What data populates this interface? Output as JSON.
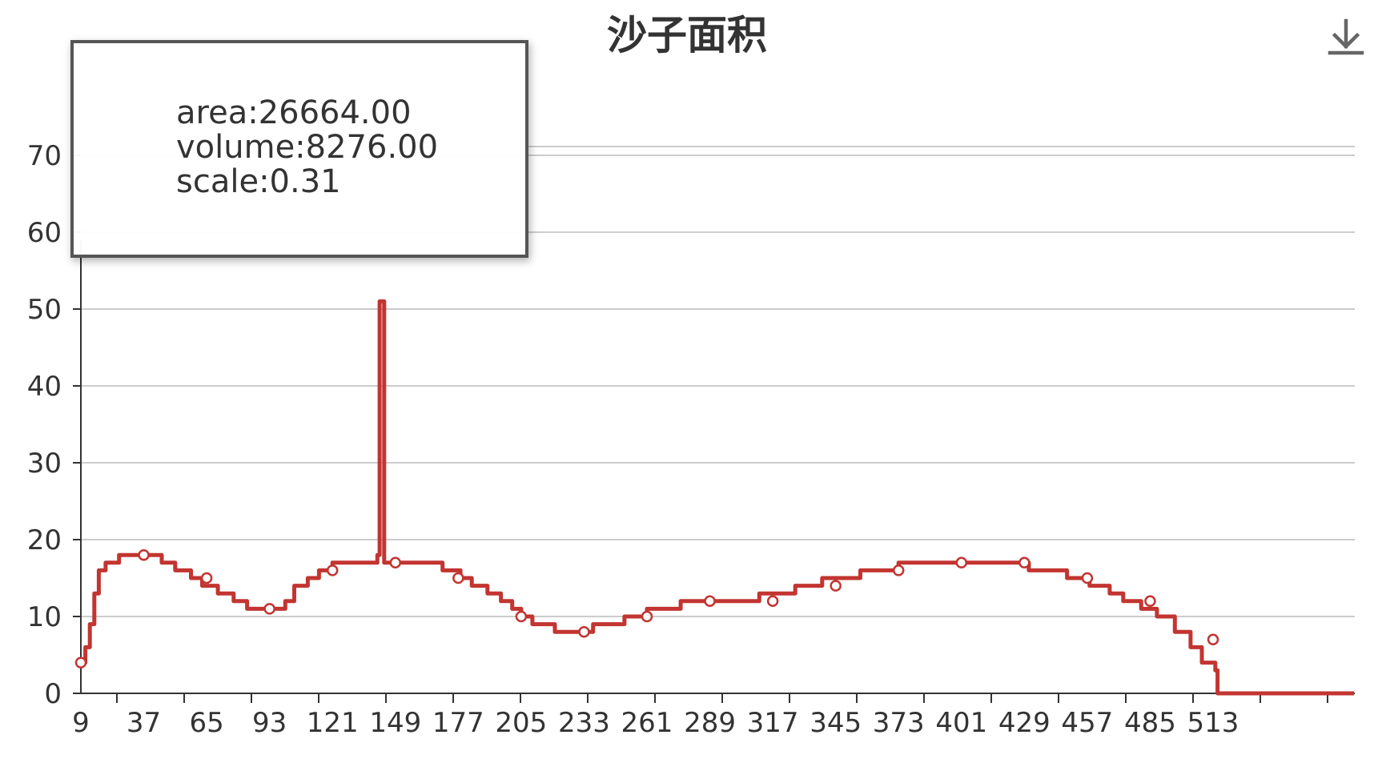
{
  "chart_data": {
    "type": "line",
    "title": "沙子面积",
    "xlabel": "",
    "ylabel": "",
    "x_ticks": [
      9,
      37,
      65,
      93,
      121,
      149,
      177,
      205,
      233,
      261,
      289,
      317,
      345,
      373,
      401,
      429,
      457,
      485,
      513
    ],
    "y_ticks": [
      0,
      10,
      20,
      30,
      40,
      50,
      60,
      70
    ],
    "xlim": [
      9,
      529
    ],
    "ylim": [
      0,
      70
    ],
    "grid": true,
    "series": [
      {
        "color": "#c23531",
        "step": true,
        "points": [
          [
            9,
            4
          ],
          [
            11,
            6
          ],
          [
            13,
            9
          ],
          [
            15,
            13
          ],
          [
            17,
            16
          ],
          [
            20,
            17
          ],
          [
            26,
            18
          ],
          [
            45,
            17
          ],
          [
            51,
            16
          ],
          [
            58,
            15
          ],
          [
            63,
            14
          ],
          [
            70,
            13
          ],
          [
            77,
            12
          ],
          [
            83,
            11
          ],
          [
            100,
            12
          ],
          [
            104,
            14
          ],
          [
            110,
            15
          ],
          [
            115,
            16
          ],
          [
            121,
            17
          ],
          [
            141,
            18
          ],
          [
            142,
            51
          ],
          [
            144,
            17
          ],
          [
            170,
            16
          ],
          [
            178,
            15
          ],
          [
            183,
            14
          ],
          [
            190,
            13
          ],
          [
            196,
            12
          ],
          [
            201,
            11
          ],
          [
            205,
            10
          ],
          [
            210,
            9
          ],
          [
            220,
            8
          ],
          [
            237,
            9
          ],
          [
            251,
            10
          ],
          [
            261,
            11
          ],
          [
            276,
            12
          ],
          [
            311,
            13
          ],
          [
            327,
            14
          ],
          [
            339,
            15
          ],
          [
            356,
            16
          ],
          [
            373,
            17
          ],
          [
            431,
            16
          ],
          [
            448,
            15
          ],
          [
            458,
            14
          ],
          [
            467,
            13
          ],
          [
            473,
            12
          ],
          [
            481,
            11
          ],
          [
            488,
            10
          ],
          [
            496,
            8
          ],
          [
            503,
            6
          ],
          [
            508,
            4
          ],
          [
            514,
            3
          ],
          [
            515,
            0
          ]
        ],
        "markers": [
          [
            9,
            4
          ],
          [
            37,
            18
          ],
          [
            65,
            15
          ],
          [
            93,
            11
          ],
          [
            121,
            16
          ],
          [
            149,
            17
          ],
          [
            177,
            15
          ],
          [
            205,
            10
          ],
          [
            233,
            8
          ],
          [
            261,
            10
          ],
          [
            289,
            12
          ],
          [
            317,
            12
          ],
          [
            345,
            14
          ],
          [
            373,
            16
          ],
          [
            401,
            17
          ],
          [
            429,
            17
          ],
          [
            457,
            15
          ],
          [
            485,
            12
          ],
          [
            513,
            7
          ]
        ]
      }
    ]
  },
  "tooltip": {
    "area": "area:26664.00",
    "volume": "volume:8276.00",
    "scale": "scale:0.31"
  },
  "toolbox": {
    "download_icon": "download-icon"
  }
}
